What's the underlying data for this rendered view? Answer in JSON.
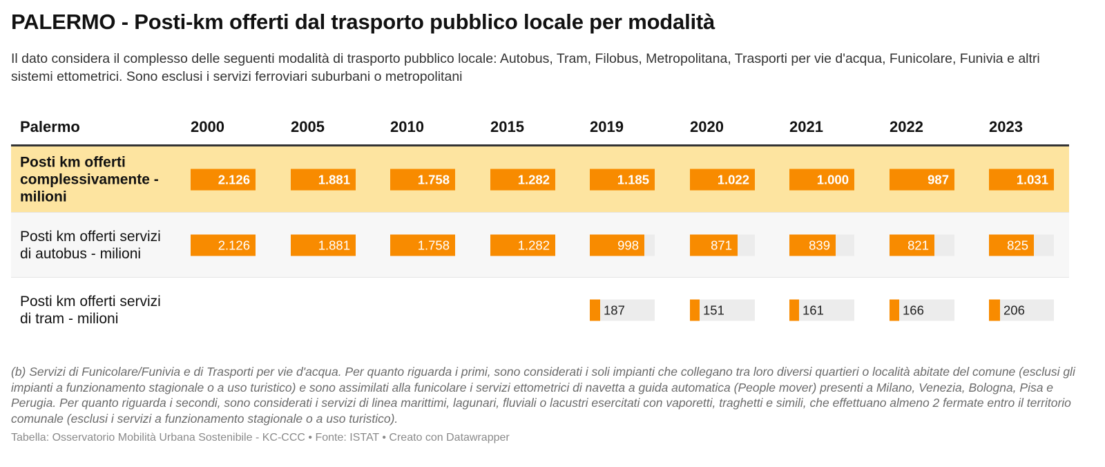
{
  "title": "PALERMO - Posti-km offerti dal trasporto pubblico locale per modalità",
  "subtitle": "Il dato considera il complesso delle seguenti modalità di trasporto pubblico locale: Autobus, Tram, Filobus, Metropolitana, Trasporti per vie d'acqua, Funicolare, Funivia e altri sistemi ettometrici. Sono esclusi i servizi ferroviari suburbani o metropolitani",
  "colors": {
    "bar": "#f88b00",
    "highlight_row": "#fde4a0",
    "bar_track": "#ececec"
  },
  "chart_data": {
    "type": "table",
    "header": "Palermo",
    "columns": [
      "2000",
      "2005",
      "2010",
      "2015",
      "2019",
      "2020",
      "2021",
      "2022",
      "2023"
    ],
    "rows": [
      {
        "label": "Posti km offerti complessivamente -milioni",
        "values": [
          2126,
          1881,
          1758,
          1282,
          1185,
          1022,
          1000,
          987,
          1031
        ],
        "display": [
          "2.126",
          "1.881",
          "1.758",
          "1.282",
          "1.185",
          "1.022",
          "1.000",
          "987",
          "1.031"
        ],
        "highlight": true
      },
      {
        "label": "Posti km offerti servizi di autobus - milioni",
        "values": [
          2126,
          1881,
          1758,
          1282,
          998,
          871,
          839,
          821,
          825
        ],
        "display": [
          "2.126",
          "1.881",
          "1.758",
          "1.282",
          "998",
          "871",
          "839",
          "821",
          "825"
        ],
        "highlight": false
      },
      {
        "label": "Posti km offerti servizi di tram - milioni",
        "values": [
          null,
          null,
          null,
          null,
          187,
          151,
          161,
          166,
          206
        ],
        "display": [
          "",
          "",
          "",
          "",
          "187",
          "151",
          "161",
          "166",
          "206"
        ],
        "highlight": false
      }
    ]
  },
  "footnote": "(b) Servizi di Funicolare/Funivia e di Trasporti per vie d'acqua. Per quanto riguarda i primi, sono considerati i soli impianti che collegano tra loro diversi quartieri o località abitate del comune (esclusi gli impianti a funzionamento stagionale o a uso turistico) e sono assimilati alla funicolare i servizi ettometrici di navetta a guida automatica (People mover) presenti a Milano, Venezia, Bologna, Pisa e Perugia. Per quanto riguarda i secondi, sono considerati i servizi di linea marittimi, lagunari, fluviali o lacustri esercitati con vaporetti, traghetti e simili, che effettuano almeno 2 fermate entro il territorio comunale (esclusi i servizi a funzionamento stagionale o a uso turistico).",
  "source": "Tabella: Osservatorio Mobilità Urbana Sostenibile - KC-CCC • Fonte: ISTAT • Creato con Datawrapper"
}
